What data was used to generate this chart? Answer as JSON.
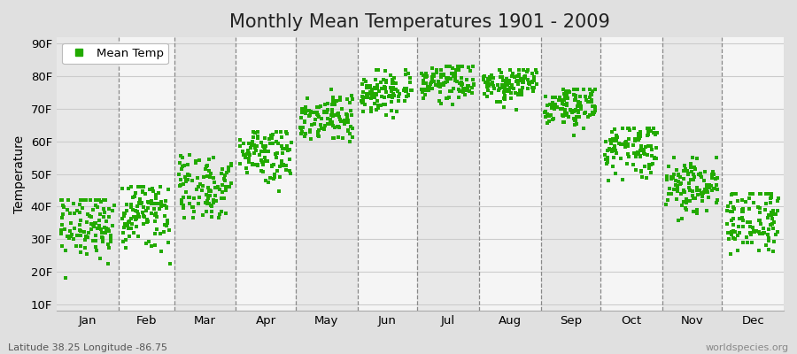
{
  "title": "Monthly Mean Temperatures 1901 - 2009",
  "ylabel": "Temperature",
  "xlabel_labels": [
    "Jan",
    "Feb",
    "Mar",
    "Apr",
    "May",
    "Jun",
    "Jul",
    "Aug",
    "Sep",
    "Oct",
    "Nov",
    "Dec"
  ],
  "ytick_labels": [
    "10F",
    "20F",
    "30F",
    "40F",
    "50F",
    "60F",
    "70F",
    "80F",
    "90F"
  ],
  "ytick_values": [
    10,
    20,
    30,
    40,
    50,
    60,
    70,
    80,
    90
  ],
  "ylim": [
    8,
    92
  ],
  "dot_color": "#22aa00",
  "stripe_light": "#f5f5f5",
  "stripe_dark": "#e8e8e8",
  "fig_bg": "#e0e0e0",
  "grid_color": "#cccccc",
  "legend_label": "Mean Temp",
  "footer_left": "Latitude 38.25 Longitude -86.75",
  "footer_right": "worldspecies.org",
  "monthly_means": [
    34.5,
    37.5,
    46.0,
    57.0,
    67.0,
    75.5,
    78.5,
    77.5,
    70.5,
    58.5,
    46.5,
    36.5
  ],
  "monthly_stds": [
    5.5,
    5.5,
    5.5,
    4.5,
    4.0,
    3.5,
    2.8,
    3.0,
    3.5,
    4.5,
    4.5,
    5.5
  ],
  "monthly_mins": [
    10,
    13,
    22,
    32,
    44,
    55,
    63,
    61,
    50,
    38,
    28,
    14
  ],
  "monthly_maxs": [
    42,
    46,
    56,
    63,
    76,
    82,
    83,
    82,
    76,
    64,
    55,
    44
  ],
  "n_years": 109,
  "title_fontsize": 15,
  "axis_fontsize": 10,
  "tick_fontsize": 9.5,
  "footer_fontsize": 8
}
